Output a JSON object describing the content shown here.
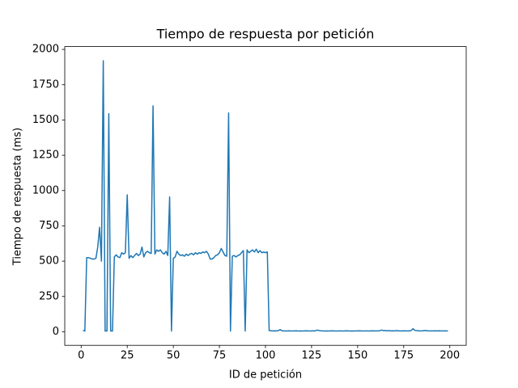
{
  "chart_data": {
    "type": "line",
    "title": "Tiempo de respuesta por petición",
    "x_label": "ID de petición",
    "y_label": "Tiempo de respuesta (ms)",
    "color": "#1f77b4",
    "x": [
      1,
      2,
      3,
      4,
      5,
      6,
      7,
      8,
      9,
      10,
      11,
      12,
      13,
      14,
      15,
      16,
      17,
      18,
      19,
      20,
      21,
      22,
      23,
      24,
      25,
      26,
      27,
      28,
      29,
      30,
      31,
      32,
      33,
      34,
      35,
      36,
      37,
      38,
      39,
      40,
      41,
      42,
      43,
      44,
      45,
      46,
      47,
      48,
      49,
      50,
      51,
      52,
      53,
      54,
      55,
      56,
      57,
      58,
      59,
      60,
      61,
      62,
      63,
      64,
      65,
      66,
      67,
      68,
      69,
      70,
      71,
      72,
      73,
      74,
      75,
      76,
      77,
      78,
      79,
      80,
      81,
      82,
      83,
      84,
      85,
      86,
      87,
      88,
      89,
      90,
      91,
      92,
      93,
      94,
      95,
      96,
      97,
      98,
      99,
      100,
      101,
      102,
      103,
      104,
      105,
      106,
      107,
      108,
      109,
      110,
      111,
      112,
      113,
      114,
      115,
      116,
      117,
      118,
      119,
      120,
      121,
      122,
      123,
      124,
      125,
      126,
      127,
      128,
      129,
      130,
      131,
      132,
      133,
      134,
      135,
      136,
      137,
      138,
      139,
      140,
      141,
      142,
      143,
      144,
      145,
      146,
      147,
      148,
      149,
      150,
      151,
      152,
      153,
      154,
      155,
      156,
      157,
      158,
      159,
      160,
      161,
      162,
      163,
      164,
      165,
      166,
      167,
      168,
      169,
      170,
      171,
      172,
      173,
      174,
      175,
      176,
      177,
      178,
      179,
      180,
      181,
      182,
      183,
      184,
      185,
      186,
      187,
      188,
      189,
      190,
      191,
      192,
      193,
      194,
      195,
      196,
      197,
      198,
      199
    ],
    "values": [
      10,
      5,
      525,
      525,
      520,
      515,
      515,
      520,
      600,
      740,
      500,
      1920,
      5,
      5,
      1545,
      5,
      5,
      530,
      545,
      530,
      525,
      560,
      550,
      560,
      970,
      520,
      540,
      525,
      540,
      555,
      540,
      550,
      600,
      530,
      560,
      570,
      560,
      555,
      1600,
      550,
      580,
      570,
      580,
      560,
      550,
      570,
      540,
      955,
      5,
      520,
      530,
      570,
      550,
      540,
      545,
      535,
      550,
      540,
      550,
      555,
      545,
      560,
      550,
      560,
      555,
      565,
      560,
      570,
      550,
      515,
      515,
      525,
      540,
      545,
      560,
      590,
      565,
      540,
      535,
      1550,
      5,
      535,
      540,
      530,
      540,
      545,
      560,
      575,
      5,
      580,
      560,
      570,
      580,
      565,
      585,
      560,
      575,
      560,
      565,
      560,
      565,
      8,
      7,
      6,
      7,
      6,
      8,
      15,
      7,
      6,
      5,
      6,
      7,
      5,
      6,
      6,
      7,
      5,
      6,
      5,
      6,
      7,
      6,
      5,
      6,
      7,
      6,
      12,
      9,
      7,
      6,
      5,
      6,
      5,
      6,
      7,
      6,
      5,
      5,
      6,
      6,
      5,
      6,
      7,
      6,
      5,
      6,
      5,
      6,
      6,
      7,
      6,
      5,
      6,
      6,
      5,
      6,
      7,
      6,
      6,
      6,
      7,
      12,
      8,
      9,
      7,
      8,
      6,
      7,
      6,
      8,
      7,
      6,
      6,
      7,
      6,
      6,
      6,
      8,
      22,
      10,
      8,
      7,
      6,
      6,
      8,
      9,
      7,
      6,
      6,
      6,
      7,
      6,
      7,
      6,
      6,
      6,
      6,
      6
    ],
    "xlim": [
      -8.9,
      208.9
    ],
    "ylim": [
      -96,
      2020
    ],
    "xticks": [
      0,
      25,
      50,
      75,
      100,
      125,
      150,
      175,
      200
    ],
    "yticks": [
      0,
      250,
      500,
      750,
      1000,
      1250,
      1500,
      1750,
      2000
    ]
  }
}
